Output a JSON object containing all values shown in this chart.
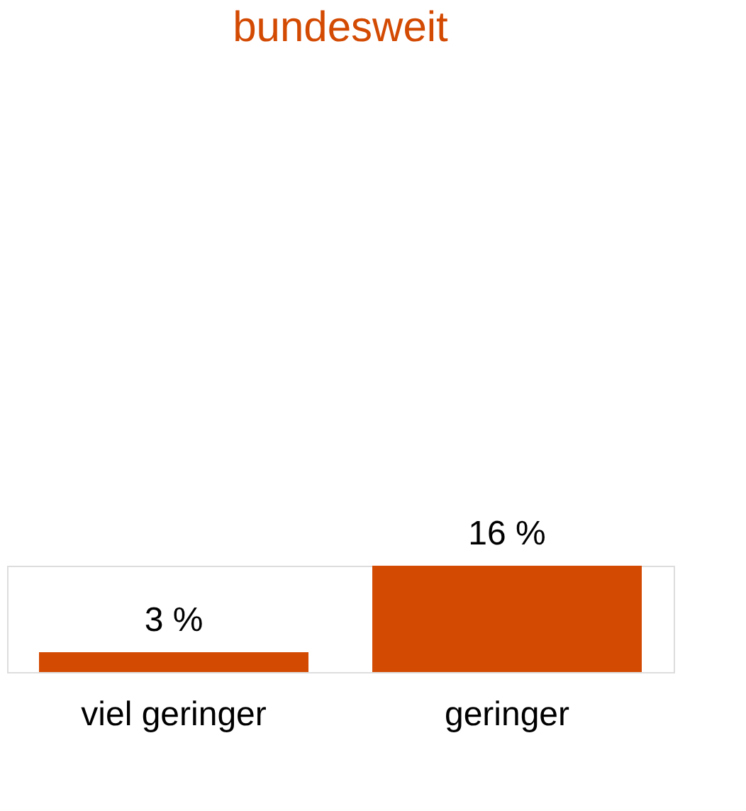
{
  "chart_data": {
    "type": "bar",
    "title": "bundesweit",
    "categories": [
      "viel geringer",
      "geringer"
    ],
    "values": [
      3,
      16
    ],
    "color": "#d34a03",
    "data_labels": true,
    "value_labels": [
      "3 %",
      "16 %"
    ]
  }
}
